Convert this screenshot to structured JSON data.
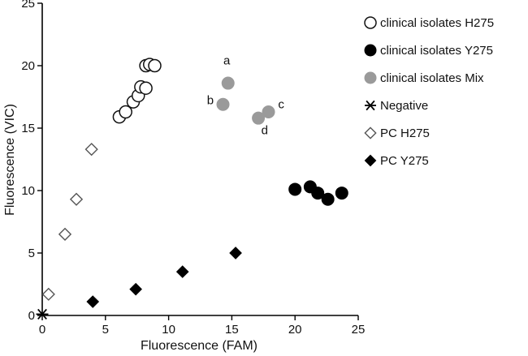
{
  "chart_data": {
    "type": "scatter",
    "title": "",
    "xlabel": "Fluorescence (FAM)",
    "ylabel": "Fluorescence (VIC)",
    "xlim": [
      0,
      25
    ],
    "ylim": [
      0,
      25
    ],
    "xticks": [
      0,
      5,
      10,
      15,
      20,
      25
    ],
    "yticks": [
      0,
      5,
      10,
      15,
      20,
      25
    ],
    "grid": false,
    "legend_position": "right",
    "series": [
      {
        "name": "clinical isolates H275",
        "marker": "open-circle",
        "color": "#000000",
        "points": [
          [
            6.1,
            15.9
          ],
          [
            6.6,
            16.3
          ],
          [
            7.2,
            17.1
          ],
          [
            7.6,
            17.6
          ],
          [
            7.8,
            18.3
          ],
          [
            8.2,
            18.2
          ],
          [
            8.2,
            20.0
          ],
          [
            8.5,
            20.1
          ],
          [
            8.9,
            20.0
          ]
        ]
      },
      {
        "name": "clinical isolates Y275",
        "marker": "filled-circle",
        "color": "#000000",
        "points": [
          [
            20.0,
            10.1
          ],
          [
            21.2,
            10.3
          ],
          [
            21.8,
            9.8
          ],
          [
            22.6,
            9.3
          ],
          [
            23.7,
            9.8
          ]
        ]
      },
      {
        "name": "clinical isolates Mix",
        "marker": "gray-circle",
        "color": "#999999",
        "points": [
          [
            14.7,
            18.6
          ],
          [
            14.3,
            16.9
          ],
          [
            17.1,
            15.8
          ],
          [
            17.9,
            16.3
          ]
        ]
      },
      {
        "name": "Negative",
        "marker": "asterisk",
        "color": "#000000",
        "points": [
          [
            0.0,
            0.1
          ]
        ]
      },
      {
        "name": "PC H275",
        "marker": "open-diamond",
        "color": "#555555",
        "points": [
          [
            0.5,
            1.7
          ],
          [
            1.8,
            6.5
          ],
          [
            2.7,
            9.3
          ],
          [
            3.9,
            13.3
          ]
        ]
      },
      {
        "name": "PC Y275",
        "marker": "filled-diamond",
        "color": "#000000",
        "points": [
          [
            4.0,
            1.1
          ],
          [
            7.4,
            2.1
          ],
          [
            11.1,
            3.5
          ],
          [
            15.3,
            5.0
          ]
        ]
      }
    ],
    "annotations": [
      {
        "text": "a",
        "x": 14.6,
        "y": 20.1
      },
      {
        "text": "b",
        "x": 13.3,
        "y": 16.9
      },
      {
        "text": "c",
        "x": 18.9,
        "y": 16.6
      },
      {
        "text": "d",
        "x": 17.6,
        "y": 14.5
      }
    ]
  }
}
